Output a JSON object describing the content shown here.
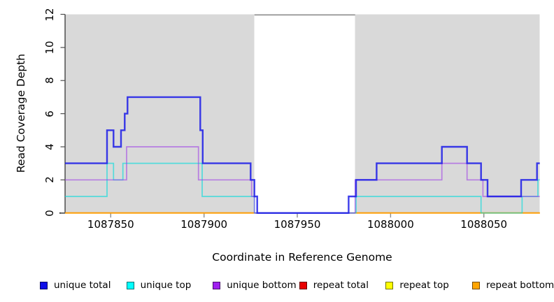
{
  "chart_data": {
    "type": "line",
    "subtype": "step-coverage",
    "title": "",
    "xlabel": "Coordinate in Reference Genome",
    "ylabel": "Read Coverage Depth",
    "xlim": [
      1087825.5,
      1088080
    ],
    "ylim": [
      0,
      12
    ],
    "xticks": [
      1087850,
      1087900,
      1087950,
      1088000,
      1088050
    ],
    "yticks": [
      0,
      2,
      4,
      6,
      8,
      10,
      12
    ],
    "grid": "off",
    "legend_position": "bottom",
    "background_bands": [
      {
        "x0": 1087825.5,
        "x1": 1087927,
        "color": "#D9D9D9"
      },
      {
        "x0": 1087981,
        "x1": 1088080,
        "color": "#D9D9D9"
      }
    ],
    "gap_top_edge": {
      "x0": 1087927,
      "x1": 1087981,
      "color": "#8C8C8C"
    },
    "series": [
      {
        "name": "repeat total",
        "color": "#E00000",
        "width": 1.6,
        "opacity": 1,
        "segments": [
          {
            "steps": [
              [
                1087825.5,
                0
              ]
            ],
            "end": 1087927
          },
          {
            "steps": [
              [
                1087981,
                0
              ]
            ],
            "end": 1088080
          }
        ]
      },
      {
        "name": "repeat top",
        "color": "#FFFF00",
        "width": 1.6,
        "opacity": 1,
        "segments": [
          {
            "steps": [
              [
                1087825.5,
                0
              ]
            ],
            "end": 1087927
          },
          {
            "steps": [
              [
                1087981,
                0
              ]
            ],
            "end": 1088080
          }
        ]
      },
      {
        "name": "repeat bottom",
        "color": "#FF9D00",
        "width": 1.8,
        "opacity": 1,
        "segments": [
          {
            "steps": [
              [
                1087825.5,
                0
              ]
            ],
            "end": 1087927
          },
          {
            "steps": [
              [
                1087981,
                0
              ]
            ],
            "end": 1088080
          }
        ]
      },
      {
        "name": "unique top",
        "color": "#00DCDC",
        "width": 1.7,
        "opacity": 0.62,
        "segments": [
          {
            "steps": [
              [
                1087825.5,
                1
              ],
              [
                1087848,
                3
              ],
              [
                1087851.5,
                2
              ],
              [
                1087856.5,
                3
              ],
              [
                1087899,
                1
              ],
              [
                1087927,
                0
              ],
              [
                1087981.5,
                1
              ],
              [
                1088048.5,
                0
              ],
              [
                1088070.5,
                1
              ],
              [
                1088079,
                2
              ]
            ],
            "end": 1088080
          }
        ]
      },
      {
        "name": "unique bottom",
        "color": "#9932E8",
        "width": 1.7,
        "opacity": 0.55,
        "segments": [
          {
            "steps": [
              [
                1087825.5,
                2
              ],
              [
                1087858.5,
                4
              ],
              [
                1087897,
                2
              ],
              [
                1087925.5,
                1
              ],
              [
                1087927,
                0
              ],
              [
                1087981,
                2
              ],
              [
                1088027.5,
                3
              ],
              [
                1088041,
                2
              ],
              [
                1088049.5,
                1
              ]
            ],
            "end": 1088080
          }
        ]
      },
      {
        "name": "unique total",
        "color": "#1A1AE8",
        "width": 2.4,
        "opacity": 0.85,
        "segments": [
          {
            "steps": [
              [
                1087825.5,
                3
              ],
              [
                1087848,
                5
              ],
              [
                1087851.5,
                4
              ],
              [
                1087855.5,
                5
              ],
              [
                1087857.5,
                6
              ],
              [
                1087859,
                7
              ],
              [
                1087898,
                5
              ],
              [
                1087899.3,
                3
              ],
              [
                1087925,
                2
              ],
              [
                1087927,
                1
              ],
              [
                1087928.5,
                0
              ],
              [
                1087977.5,
                1
              ],
              [
                1087981.5,
                2
              ],
              [
                1087992.5,
                3
              ],
              [
                1088027.5,
                4
              ],
              [
                1088041,
                3
              ],
              [
                1088048.5,
                2
              ],
              [
                1088052,
                1
              ],
              [
                1088070,
                2
              ],
              [
                1088078.5,
                3
              ]
            ],
            "end": 1088080
          }
        ]
      }
    ]
  },
  "legend": {
    "items": [
      {
        "label": "unique total",
        "fill": "#0F0FE8"
      },
      {
        "label": "unique top",
        "fill": "#00FFFF"
      },
      {
        "label": "unique bottom",
        "fill": "#A020F0"
      },
      {
        "label": "repeat total",
        "fill": "#E80000"
      },
      {
        "label": "repeat top",
        "fill": "#FFFF00"
      },
      {
        "label": "repeat bottom",
        "fill": "#FFA500"
      }
    ]
  },
  "axis_colors": {
    "axis_line": "#000000",
    "y_tick": "#4D4D4D",
    "x_tick": "#8C8C8C"
  }
}
